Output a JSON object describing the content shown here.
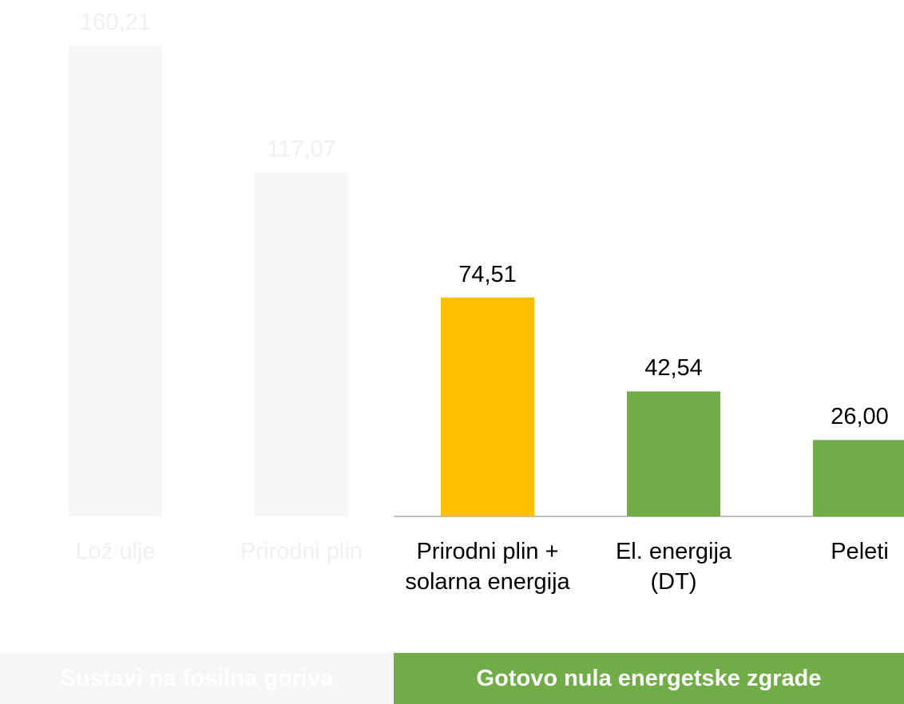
{
  "chart_data": {
    "type": "bar",
    "categories": [
      "Lož ulje",
      "Prirodni plin",
      "Prirodni plin + solarna energija",
      "El. energija (DT)",
      "Peleti"
    ],
    "values": [
      160.21,
      117.07,
      74.51,
      42.54,
      26.0
    ],
    "value_labels": [
      "160,21",
      "117,07",
      "74,51",
      "42,54",
      "26,00"
    ],
    "colors": [
      "#f6f6f6",
      "#f6f6f6",
      "#ffc000",
      "#70ad47",
      "#70ad47"
    ],
    "text_colors": [
      "#f0f0f0",
      "#f0f0f0",
      "#000000",
      "#000000",
      "#000000"
    ],
    "ylim": [
      0,
      160
    ],
    "groups": [
      {
        "name": "Sustavi na fosilna goriva",
        "span": 2,
        "color": "#f6f6f6",
        "text_color": "#ffffff"
      },
      {
        "name": "Gotovo nula energetske zgrade",
        "span": 3,
        "color": "#70ad47",
        "text_color": "#ffffff"
      }
    ]
  }
}
